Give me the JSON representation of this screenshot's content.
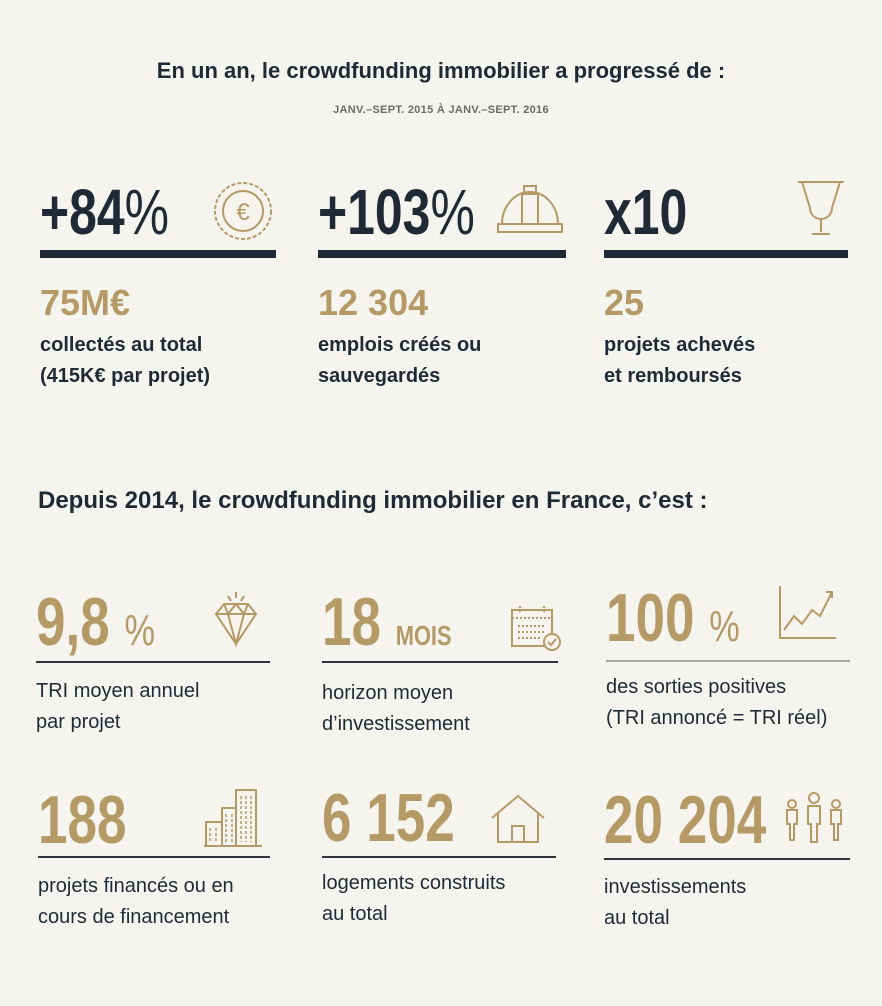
{
  "header": {
    "title": "En un an, le crowdfunding immobilier a progressé de :",
    "subtitle": "JANV.–SEPT. 2015 À JANV.–SEPT. 2016"
  },
  "top_stats": [
    {
      "growth": "+84",
      "growth_unit": "%",
      "icon": "euro-coin-icon",
      "value": "75M€",
      "line1": "collectés au total",
      "line2": "(415K€ par projet)"
    },
    {
      "growth": "+103",
      "growth_unit": "%",
      "icon": "hard-hat-icon",
      "value": "12 304",
      "line1": "emplois créés ou",
      "line2": "sauvegardés"
    },
    {
      "growth": "x10",
      "growth_unit": "",
      "icon": "trophy-icon",
      "value": "25",
      "line1": "projets achevés",
      "line2": "et remboursés"
    }
  ],
  "section2": {
    "title": "Depuis 2014, le crowdfunding immobilier en France, c’est :"
  },
  "stats": [
    {
      "value": "9,8",
      "unit": "%",
      "icon": "diamond-icon",
      "line1": "TRI moyen annuel",
      "line2": "par projet"
    },
    {
      "value": "18",
      "unit": "MOIS",
      "icon": "calendar-icon",
      "line1": "horizon moyen",
      "line2": "d’investissement"
    },
    {
      "value": "100",
      "unit": "%",
      "icon": "growth-chart-icon",
      "line1": "des sorties positives",
      "line2": "(TRI annoncé = TRI réel)"
    },
    {
      "value": "188",
      "unit": "",
      "icon": "buildings-icon",
      "line1": "projets financés ou en",
      "line2": "cours de financement"
    },
    {
      "value": "6 152",
      "unit": "",
      "icon": "house-icon",
      "line1": "logements construits",
      "line2": "au total"
    },
    {
      "value": "20 204",
      "unit": "",
      "icon": "people-icon",
      "line1": "investissements",
      "line2": "au total"
    }
  ],
  "colors": {
    "navy": "#1f2a36",
    "gold": "#b59a66",
    "background": "#f6f4ef"
  }
}
